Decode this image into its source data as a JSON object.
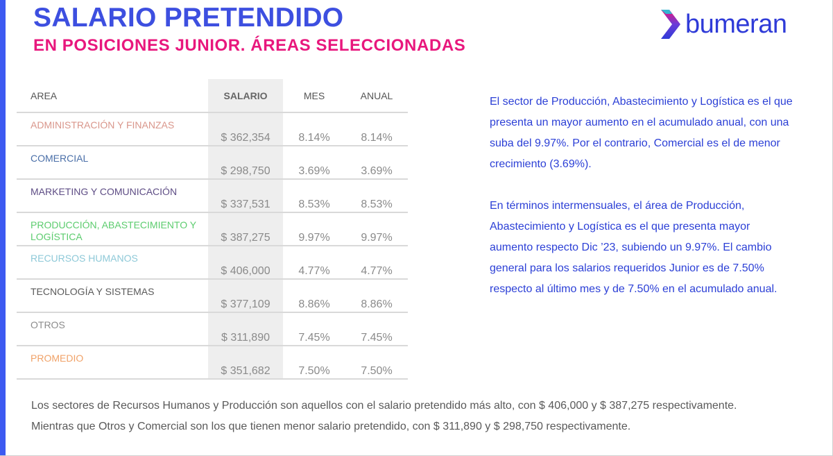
{
  "header": {
    "title": "SALARIO PRETENDIDO",
    "subtitle": "EN POSICIONES JUNIOR. ÁREAS SELECCIONADAS"
  },
  "logo": {
    "text": "bumeran",
    "icon": "bumeran-chevron-icon"
  },
  "table": {
    "headers": {
      "area": "AREA",
      "salario": "SALARIO",
      "mes": "MES",
      "anual": "ANUAL"
    },
    "rows": [
      {
        "area": "ADMINISTRACIÓN Y FINANZAS",
        "salario": "$ 362,354",
        "mes": "8.14%",
        "anual": "8.14%",
        "color": "#d9968b"
      },
      {
        "area": "COMERCIAL",
        "salario": "$ 298,750",
        "mes": "3.69%",
        "anual": "3.69%",
        "color": "#4a6fa8"
      },
      {
        "area": "MARKETING Y COMUNICACIÓN",
        "salario": "$ 337,531",
        "mes": "8.53%",
        "anual": "8.53%",
        "color": "#5e4d85"
      },
      {
        "area": "PRODUCCIÓN, ABASTECIMIENTO Y LOGÍSTICA",
        "salario": "$ 387,275",
        "mes": "9.97%",
        "anual": "9.97%",
        "color": "#5ccc6e"
      },
      {
        "area": "RECURSOS HUMANOS",
        "salario": "$ 406,000",
        "mes": "4.77%",
        "anual": "4.77%",
        "color": "#8ec9d8"
      },
      {
        "area": "TECNOLOGÍA Y SISTEMAS",
        "salario": "$ 377,109",
        "mes": "8.86%",
        "anual": "8.86%",
        "color": "#5a5a5a"
      },
      {
        "area": "OTROS",
        "salario": "$ 311,890",
        "mes": "7.45%",
        "anual": "7.45%",
        "color": "#8c8c8c"
      },
      {
        "area": "PROMEDIO",
        "salario": "$ 351,682",
        "mes": "7.50%",
        "anual": "7.50%",
        "color": "#f0a268"
      }
    ]
  },
  "commentary": {
    "paragraph1": "El sector de Producción, Abastecimiento y Logística es el que presenta un mayor aumento en el acumulado anual, con una suba del 9.97%. Por el contrario, Comercial es el de menor crecimiento (3.69%).",
    "paragraph2": "En términos intermensuales, el área de Producción, Abastecimiento y Logística es el que presenta mayor aumento respecto Dic ’23, subiendo un 9.97%. El cambio general para los salarios requeridos Junior es de 7.50% respecto al último mes y de 7.50% en el acumulado anual."
  },
  "footer": {
    "line1": "Los sectores de Recursos Humanos y Producción son aquellos con el salario pretendido más alto, con $ 406,000 y $ 387,275 respectivamente.",
    "line2": "Mientras que Otros y Comercial son los que tienen menor salario pretendido, con $ 311,890 y $ 298,750 respectivamente."
  },
  "colors": {
    "accent_blue": "#3d4fe0",
    "accent_pink": "#e8177d",
    "left_bar": "#3d5af1"
  }
}
